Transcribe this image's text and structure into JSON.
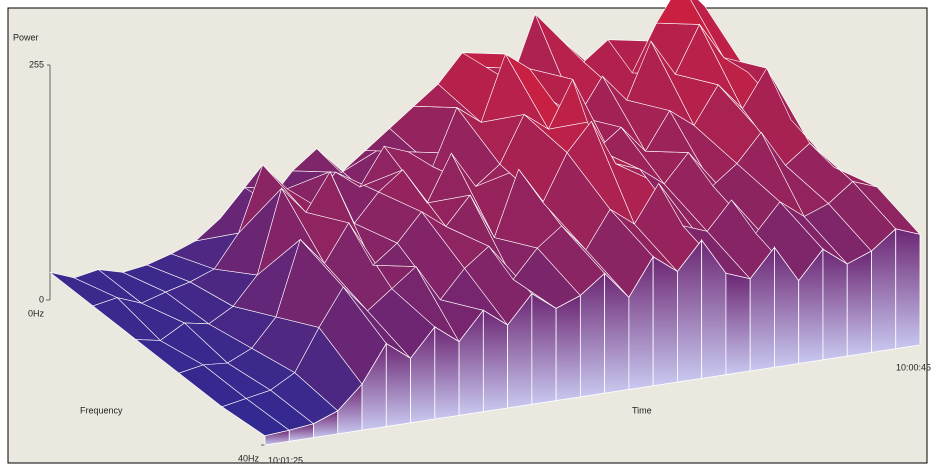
{
  "chart_data": {
    "type": "surface",
    "power_axis": {
      "label": "Power",
      "lim": [
        0,
        255
      ],
      "ticks": [
        0,
        255
      ]
    },
    "frequency_axis": {
      "label": "Frequency",
      "lim": [
        0,
        40
      ],
      "ticks": [
        {
          "value": 0,
          "label": "0Hz"
        },
        {
          "value": 40,
          "label": "40Hz"
        }
      ]
    },
    "time_axis": {
      "label": "Time",
      "start": "10:01:25",
      "end": "10:00:45"
    },
    "low_color": "#2a2a96",
    "high_color": "#e61e32",
    "curtain_color": "#c8c8f0",
    "z": [
      [
        30,
        20,
        25,
        18,
        22,
        30,
        40,
        60,
        90,
        70,
        100,
        120,
        90,
        110,
        130,
        150,
        170,
        200,
        180,
        160,
        230,
        200,
        170,
        190,
        150,
        200,
        240,
        210
      ],
      [
        25,
        30,
        20,
        28,
        35,
        45,
        80,
        150,
        120,
        100,
        130,
        110,
        150,
        140,
        120,
        180,
        160,
        230,
        210,
        170,
        150,
        190,
        160,
        220,
        180,
        230,
        190,
        170
      ],
      [
        20,
        15,
        30,
        25,
        40,
        70,
        160,
        130,
        170,
        110,
        140,
        160,
        120,
        170,
        130,
        150,
        200,
        180,
        230,
        150,
        170,
        140,
        180,
        160,
        200,
        170,
        210,
        150
      ],
      [
        15,
        20,
        18,
        30,
        60,
        140,
        110,
        150,
        100,
        120,
        150,
        130,
        160,
        110,
        180,
        140,
        190,
        220,
        170,
        160,
        140,
        170,
        130,
        150,
        180,
        140,
        160,
        130
      ],
      [
        10,
        15,
        20,
        35,
        80,
        120,
        90,
        110,
        130,
        90,
        120,
        140,
        100,
        130,
        150,
        120,
        160,
        140,
        180,
        130,
        120,
        150,
        110,
        140,
        120,
        130,
        150,
        140
      ],
      [
        10,
        12,
        15,
        25,
        50,
        90,
        70,
        100,
        80,
        110,
        90,
        120,
        100,
        110,
        130,
        100,
        140,
        120,
        150,
        110,
        100,
        130,
        90,
        120,
        100,
        110,
        130,
        120
      ]
    ]
  }
}
